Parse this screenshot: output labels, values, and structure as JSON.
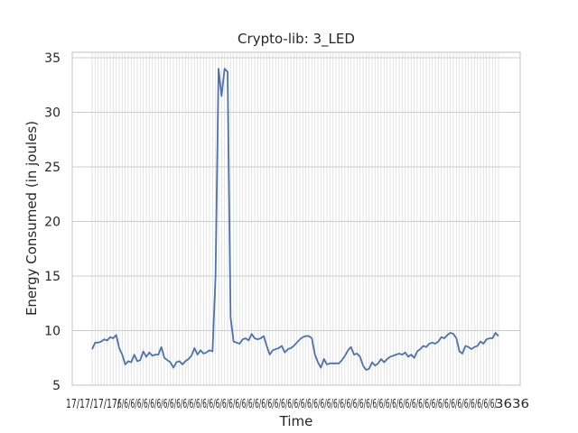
{
  "chart_data": {
    "type": "line",
    "title": "Crypto-lib: 3_LED",
    "xlabel": "Time",
    "ylabel": "Energy Consumed (in joules)",
    "ylim": [
      5,
      35.5
    ],
    "yticks": [
      5,
      10,
      15,
      20,
      25,
      30,
      35
    ],
    "grid": true,
    "legend": "none",
    "x_tick_labels_visible": "17/ ... 36",
    "line_color": "#4c72b0",
    "series": [
      {
        "values": [
          8.3,
          8.9,
          8.9,
          9.0,
          9.2,
          9.1,
          9.4,
          9.3,
          9.6,
          8.4,
          7.8,
          6.9,
          7.2,
          7.1,
          7.8,
          7.2,
          7.3,
          8.1,
          7.6,
          8.0,
          7.7,
          7.8,
          7.8,
          8.5,
          7.5,
          7.3,
          7.1,
          6.6,
          7.1,
          7.2,
          6.9,
          7.2,
          7.4,
          7.7,
          8.4,
          7.8,
          8.2,
          7.9,
          8.0,
          8.2,
          8.1,
          15.0,
          34.0,
          31.5,
          34.0,
          33.7,
          11.2,
          9.0,
          8.9,
          8.8,
          9.2,
          9.3,
          9.1,
          9.7,
          9.3,
          9.2,
          9.3,
          9.5,
          8.6,
          7.8,
          8.2,
          8.3,
          8.4,
          8.6,
          8.0,
          8.3,
          8.4,
          8.6,
          8.9,
          9.2,
          9.4,
          9.5,
          9.5,
          9.3,
          7.8,
          7.1,
          6.6,
          7.4,
          6.9,
          7.0,
          7.0,
          7.0,
          7.0,
          7.3,
          7.7,
          8.2,
          8.5,
          7.8,
          7.9,
          7.6,
          6.8,
          6.4,
          6.5,
          7.1,
          6.8,
          7.0,
          7.4,
          7.1,
          7.4,
          7.6,
          7.7,
          7.8,
          7.9,
          7.8,
          8.0,
          7.6,
          7.8,
          7.5,
          8.1,
          8.3,
          8.6,
          8.5,
          8.8,
          8.9,
          8.8,
          9.0,
          9.4,
          9.3,
          9.6,
          9.8,
          9.7,
          9.3,
          8.1,
          7.9,
          8.6,
          8.5,
          8.3,
          8.5,
          8.6,
          9.0,
          8.8,
          9.2,
          9.3,
          9.3,
          9.8,
          9.5
        ]
      }
    ]
  }
}
